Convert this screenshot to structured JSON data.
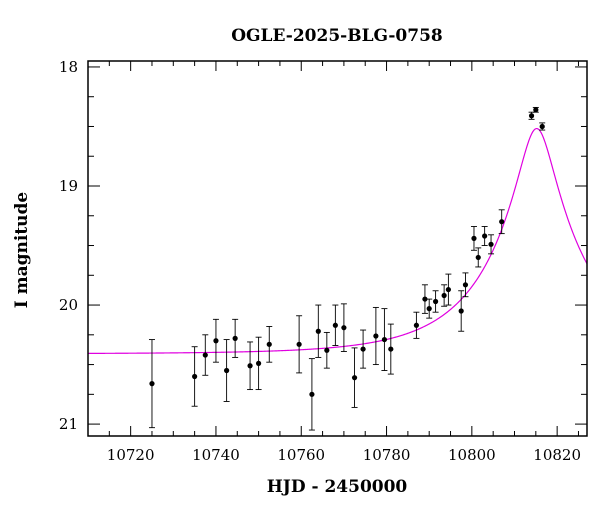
{
  "chart_data": {
    "type": "scatter",
    "title": "OGLE-2025-BLG-0758",
    "xlabel": "HJD - 2450000",
    "ylabel": "I magnitude",
    "xlim": [
      10710,
      10827
    ],
    "ylim": [
      21.1,
      17.95
    ],
    "y_inverted": true,
    "grid": false,
    "x_ticks": [
      10720,
      10740,
      10760,
      10780,
      10800,
      10820
    ],
    "y_ticks": [
      18,
      19,
      20,
      21
    ],
    "colors": {
      "model": "#e000e0",
      "points": "#000000",
      "axes": "#000000"
    },
    "series": [
      {
        "type": "points_with_errorbars",
        "points": [
          {
            "x": 10725.0,
            "y": 20.66,
            "err": 0.37
          },
          {
            "x": 10735.0,
            "y": 20.6,
            "err": 0.25
          },
          {
            "x": 10737.5,
            "y": 20.42,
            "err": 0.17
          },
          {
            "x": 10740.0,
            "y": 20.3,
            "err": 0.18
          },
          {
            "x": 10742.5,
            "y": 20.55,
            "err": 0.26
          },
          {
            "x": 10744.5,
            "y": 20.28,
            "err": 0.16
          },
          {
            "x": 10748.0,
            "y": 20.51,
            "err": 0.2
          },
          {
            "x": 10750.0,
            "y": 20.49,
            "err": 0.22
          },
          {
            "x": 10752.5,
            "y": 20.33,
            "err": 0.15
          },
          {
            "x": 10759.5,
            "y": 20.33,
            "err": 0.24
          },
          {
            "x": 10762.5,
            "y": 20.75,
            "err": 0.3
          },
          {
            "x": 10764.0,
            "y": 20.22,
            "err": 0.22
          },
          {
            "x": 10766.0,
            "y": 20.38,
            "err": 0.15
          },
          {
            "x": 10768.0,
            "y": 20.17,
            "err": 0.17
          },
          {
            "x": 10770.0,
            "y": 20.19,
            "err": 0.2
          },
          {
            "x": 10772.5,
            "y": 20.61,
            "err": 0.25
          },
          {
            "x": 10774.5,
            "y": 20.37,
            "err": 0.16
          },
          {
            "x": 10777.5,
            "y": 20.26,
            "err": 0.24
          },
          {
            "x": 10779.5,
            "y": 20.29,
            "err": 0.26
          },
          {
            "x": 10781.0,
            "y": 20.37,
            "err": 0.21
          },
          {
            "x": 10787.0,
            "y": 20.17,
            "err": 0.11
          },
          {
            "x": 10789.0,
            "y": 19.95,
            "err": 0.12
          },
          {
            "x": 10790.0,
            "y": 20.03,
            "err": 0.08
          },
          {
            "x": 10791.5,
            "y": 19.97,
            "err": 0.09
          },
          {
            "x": 10793.5,
            "y": 19.92,
            "err": 0.09
          },
          {
            "x": 10794.5,
            "y": 19.87,
            "err": 0.13
          },
          {
            "x": 10797.5,
            "y": 20.05,
            "err": 0.17
          },
          {
            "x": 10798.5,
            "y": 19.83,
            "err": 0.1
          },
          {
            "x": 10800.5,
            "y": 19.44,
            "err": 0.1
          },
          {
            "x": 10801.5,
            "y": 19.6,
            "err": 0.08
          },
          {
            "x": 10803.0,
            "y": 19.42,
            "err": 0.08
          },
          {
            "x": 10804.5,
            "y": 19.49,
            "err": 0.08
          },
          {
            "x": 10807.0,
            "y": 19.3,
            "err": 0.1
          },
          {
            "x": 10814.0,
            "y": 18.41,
            "err": 0.03
          },
          {
            "x": 10815.0,
            "y": 18.36,
            "err": 0.02
          },
          {
            "x": 10816.5,
            "y": 18.5,
            "err": 0.03
          }
        ]
      },
      {
        "type": "model_curve",
        "model": "paczynski",
        "params": {
          "t0": 10815.2,
          "u0": 0.177,
          "tE": 22.5,
          "I_base": 20.41
        }
      }
    ]
  }
}
